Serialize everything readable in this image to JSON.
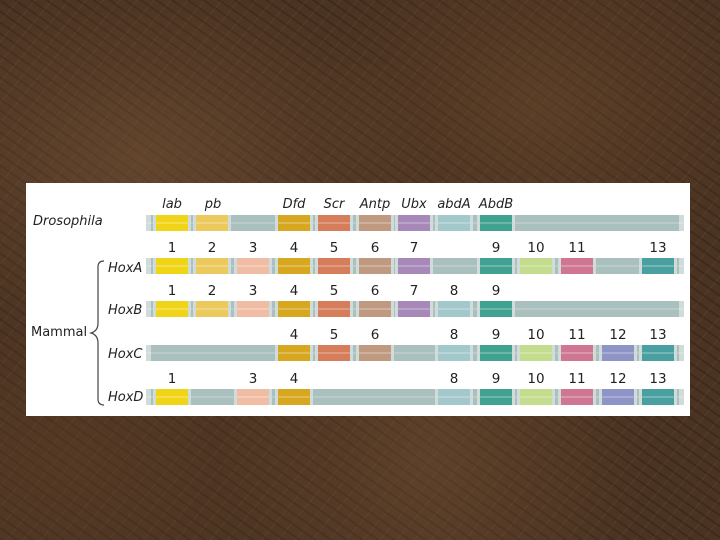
{
  "diagram": {
    "gene_names": [
      "lab",
      "pb",
      "Dfd",
      "Scr",
      "Antp",
      "Ubx",
      "abdA",
      "AbdB"
    ],
    "drosophila_label": "Drosophila",
    "mammal_label": "Mammal",
    "colors": {
      "backbone": "#a9c0be",
      "cap": "#cfdcda",
      "g1": "#f0d418",
      "g2": "#ebc95c",
      "g3": "#f0bda4",
      "g4": "#d7a720",
      "g5": "#d67d5c",
      "g6": "#bf9a80",
      "g7": "#a688b9",
      "g8": "#a2c8cc",
      "g9": "#41a291",
      "g10": "#c4dc8d",
      "g11": "#cf7792",
      "g12": "#8e94c6",
      "g13": "#4aa0a0"
    },
    "rows": [
      {
        "name": "HoxA",
        "genes": [
          1,
          2,
          3,
          4,
          5,
          6,
          7,
          9,
          10,
          11,
          13
        ],
        "labels": [
          "1",
          "2",
          "3",
          "4",
          "5",
          "6",
          "7",
          "9",
          "10",
          "11",
          "13"
        ]
      },
      {
        "name": "HoxB",
        "genes": [
          1,
          2,
          3,
          4,
          5,
          6,
          7,
          8,
          9
        ],
        "labels": [
          "1",
          "2",
          "3",
          "4",
          "5",
          "6",
          "7",
          "8",
          "9"
        ]
      },
      {
        "name": "HoxC",
        "genes": [
          4,
          5,
          6,
          8,
          9,
          10,
          11,
          12,
          13
        ],
        "labels": [
          "4",
          "5",
          "6",
          "8",
          "9",
          "10",
          "11",
          "12",
          "13"
        ]
      },
      {
        "name": "HoxD",
        "genes": [
          1,
          3,
          4,
          8,
          9,
          10,
          11,
          12,
          13
        ],
        "labels": [
          "1",
          "3",
          "4",
          "8",
          "9",
          "10",
          "11",
          "12",
          "13"
        ]
      }
    ]
  }
}
